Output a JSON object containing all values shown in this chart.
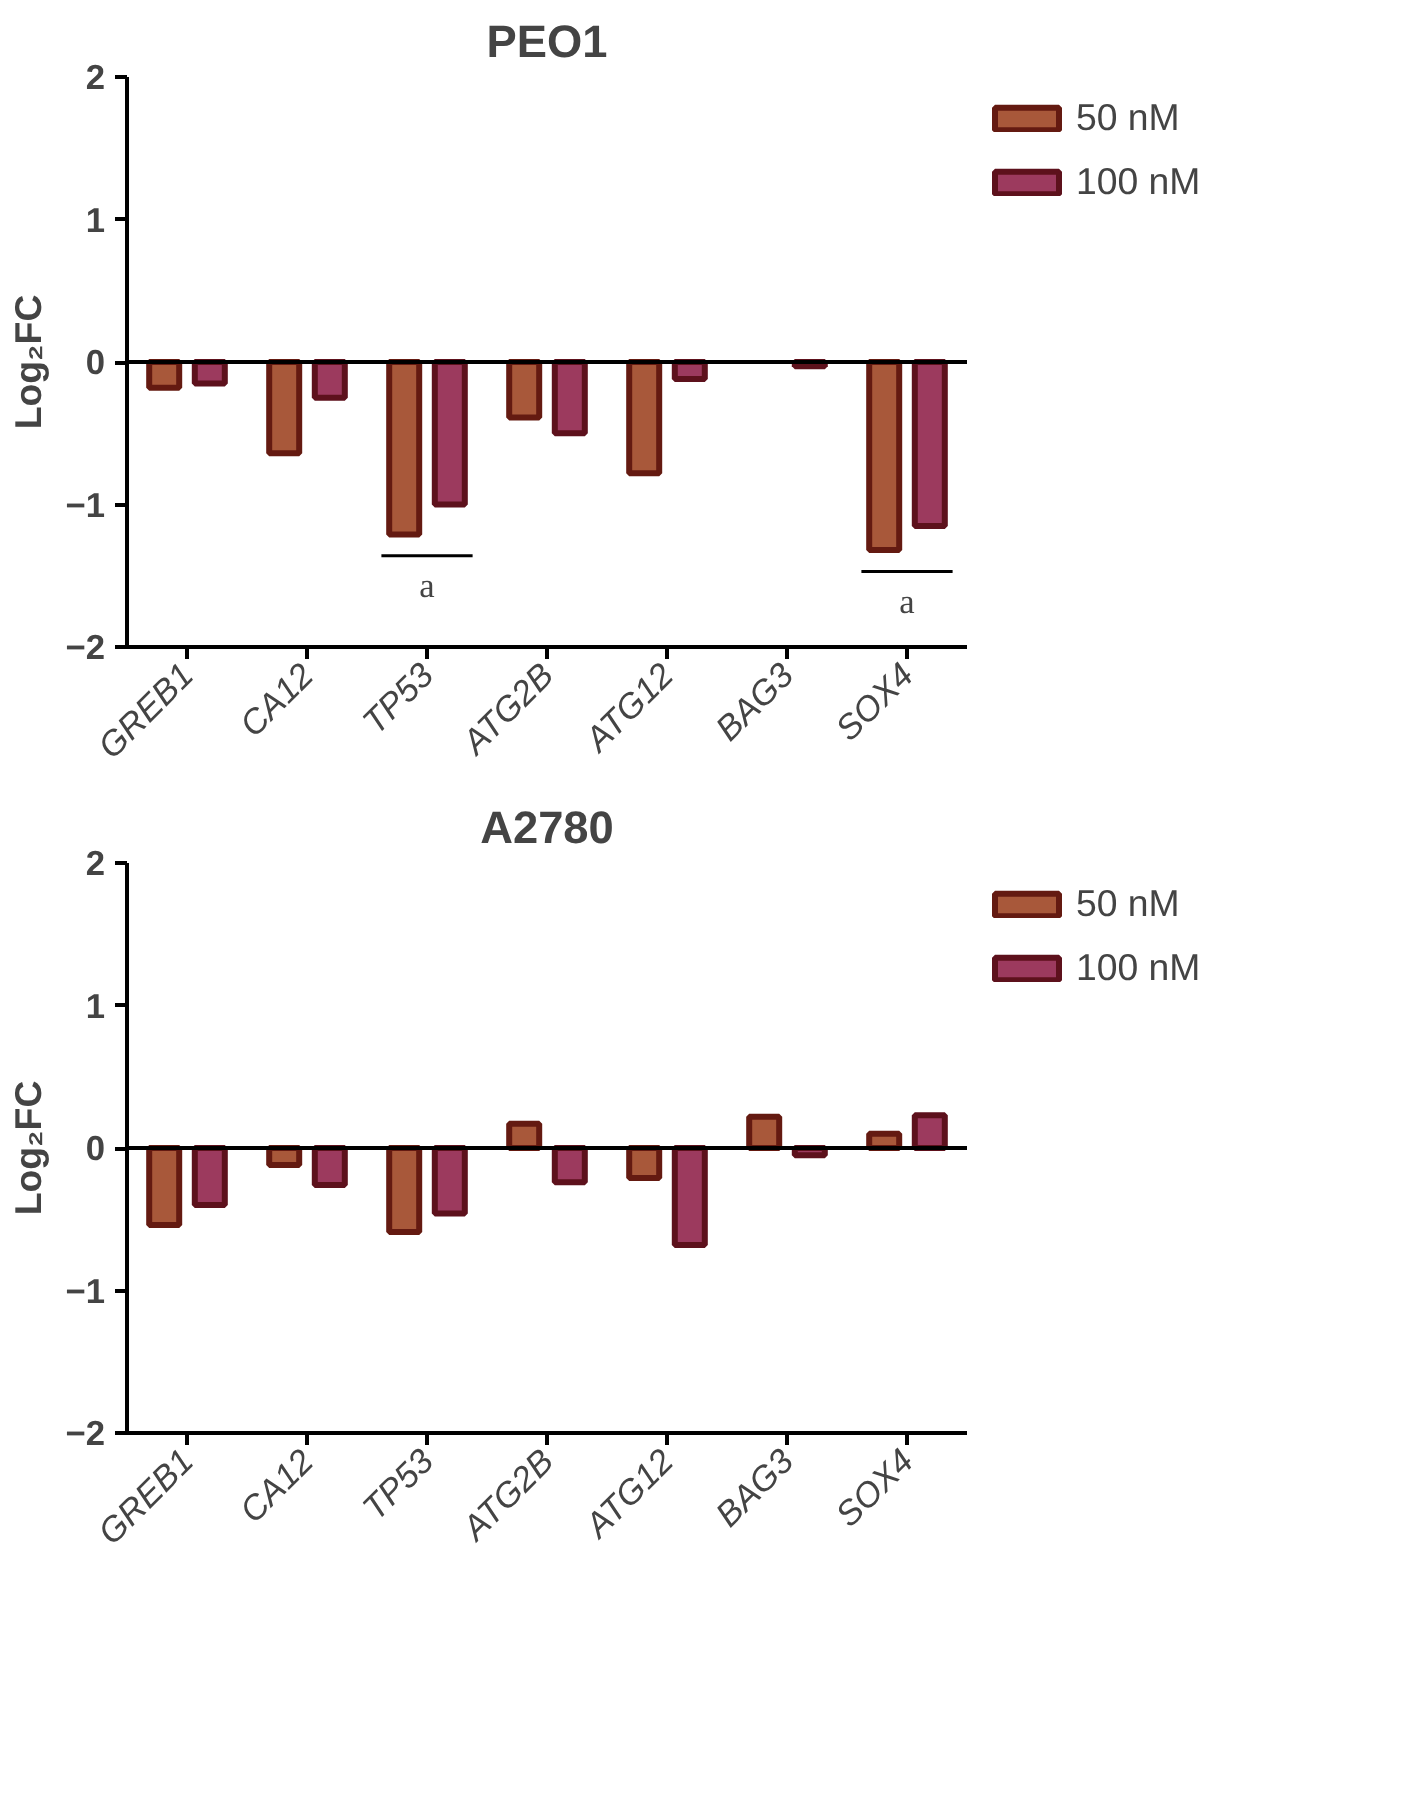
{
  "chart_data": [
    {
      "type": "bar",
      "title": "PEO1",
      "ylabel": "Log₂FC",
      "categories": [
        "GREB1",
        "CA12",
        "TP53",
        "ATG2B",
        "ATG12",
        "BAG3",
        "SOX4"
      ],
      "series": [
        {
          "name": "50 nM",
          "color": "#a8583a",
          "values": [
            -0.18,
            -0.64,
            -1.21,
            -0.39,
            -0.78,
            null,
            -1.32
          ]
        },
        {
          "name": "100 nM",
          "color": "#9c3a5e",
          "values": [
            -0.15,
            -0.25,
            -1.0,
            -0.5,
            -0.12,
            -0.03,
            -1.15
          ]
        }
      ],
      "ylim": [
        -2,
        2
      ],
      "yticks": [
        -2,
        -1,
        0,
        1,
        2
      ],
      "grid": false,
      "legend": "top right",
      "ref_lines": [
        {
          "axis": "y",
          "value": 0,
          "color": "#000000"
        }
      ],
      "annotations": [
        {
          "text": "a",
          "x": "TP53",
          "y": -1.21
        },
        {
          "text": "a",
          "x": "SOX4",
          "y": -1.32
        }
      ]
    },
    {
      "type": "bar",
      "title": "A2780",
      "ylabel": "Log₂FC",
      "categories": [
        "GREB1",
        "CA12",
        "TP53",
        "ATG2B",
        "ATG12",
        "BAG3",
        "SOX4"
      ],
      "series": [
        {
          "name": "50 nM",
          "color": "#a8583a",
          "values": [
            -0.54,
            -0.12,
            -0.59,
            0.17,
            -0.21,
            0.22,
            0.1
          ]
        },
        {
          "name": "100 nM",
          "color": "#9c3a5e",
          "values": [
            -0.4,
            -0.26,
            -0.46,
            -0.24,
            -0.68,
            -0.05,
            0.23
          ]
        }
      ],
      "ref_lines": [
        {
          "axis": "y",
          "value": 0,
          "color": "#000000"
        }
      ],
      "ylim": [
        -2,
        2
      ],
      "yticks": [
        -2,
        -1,
        0,
        1,
        2
      ],
      "grid": false,
      "legend": "top right"
    }
  ]
}
